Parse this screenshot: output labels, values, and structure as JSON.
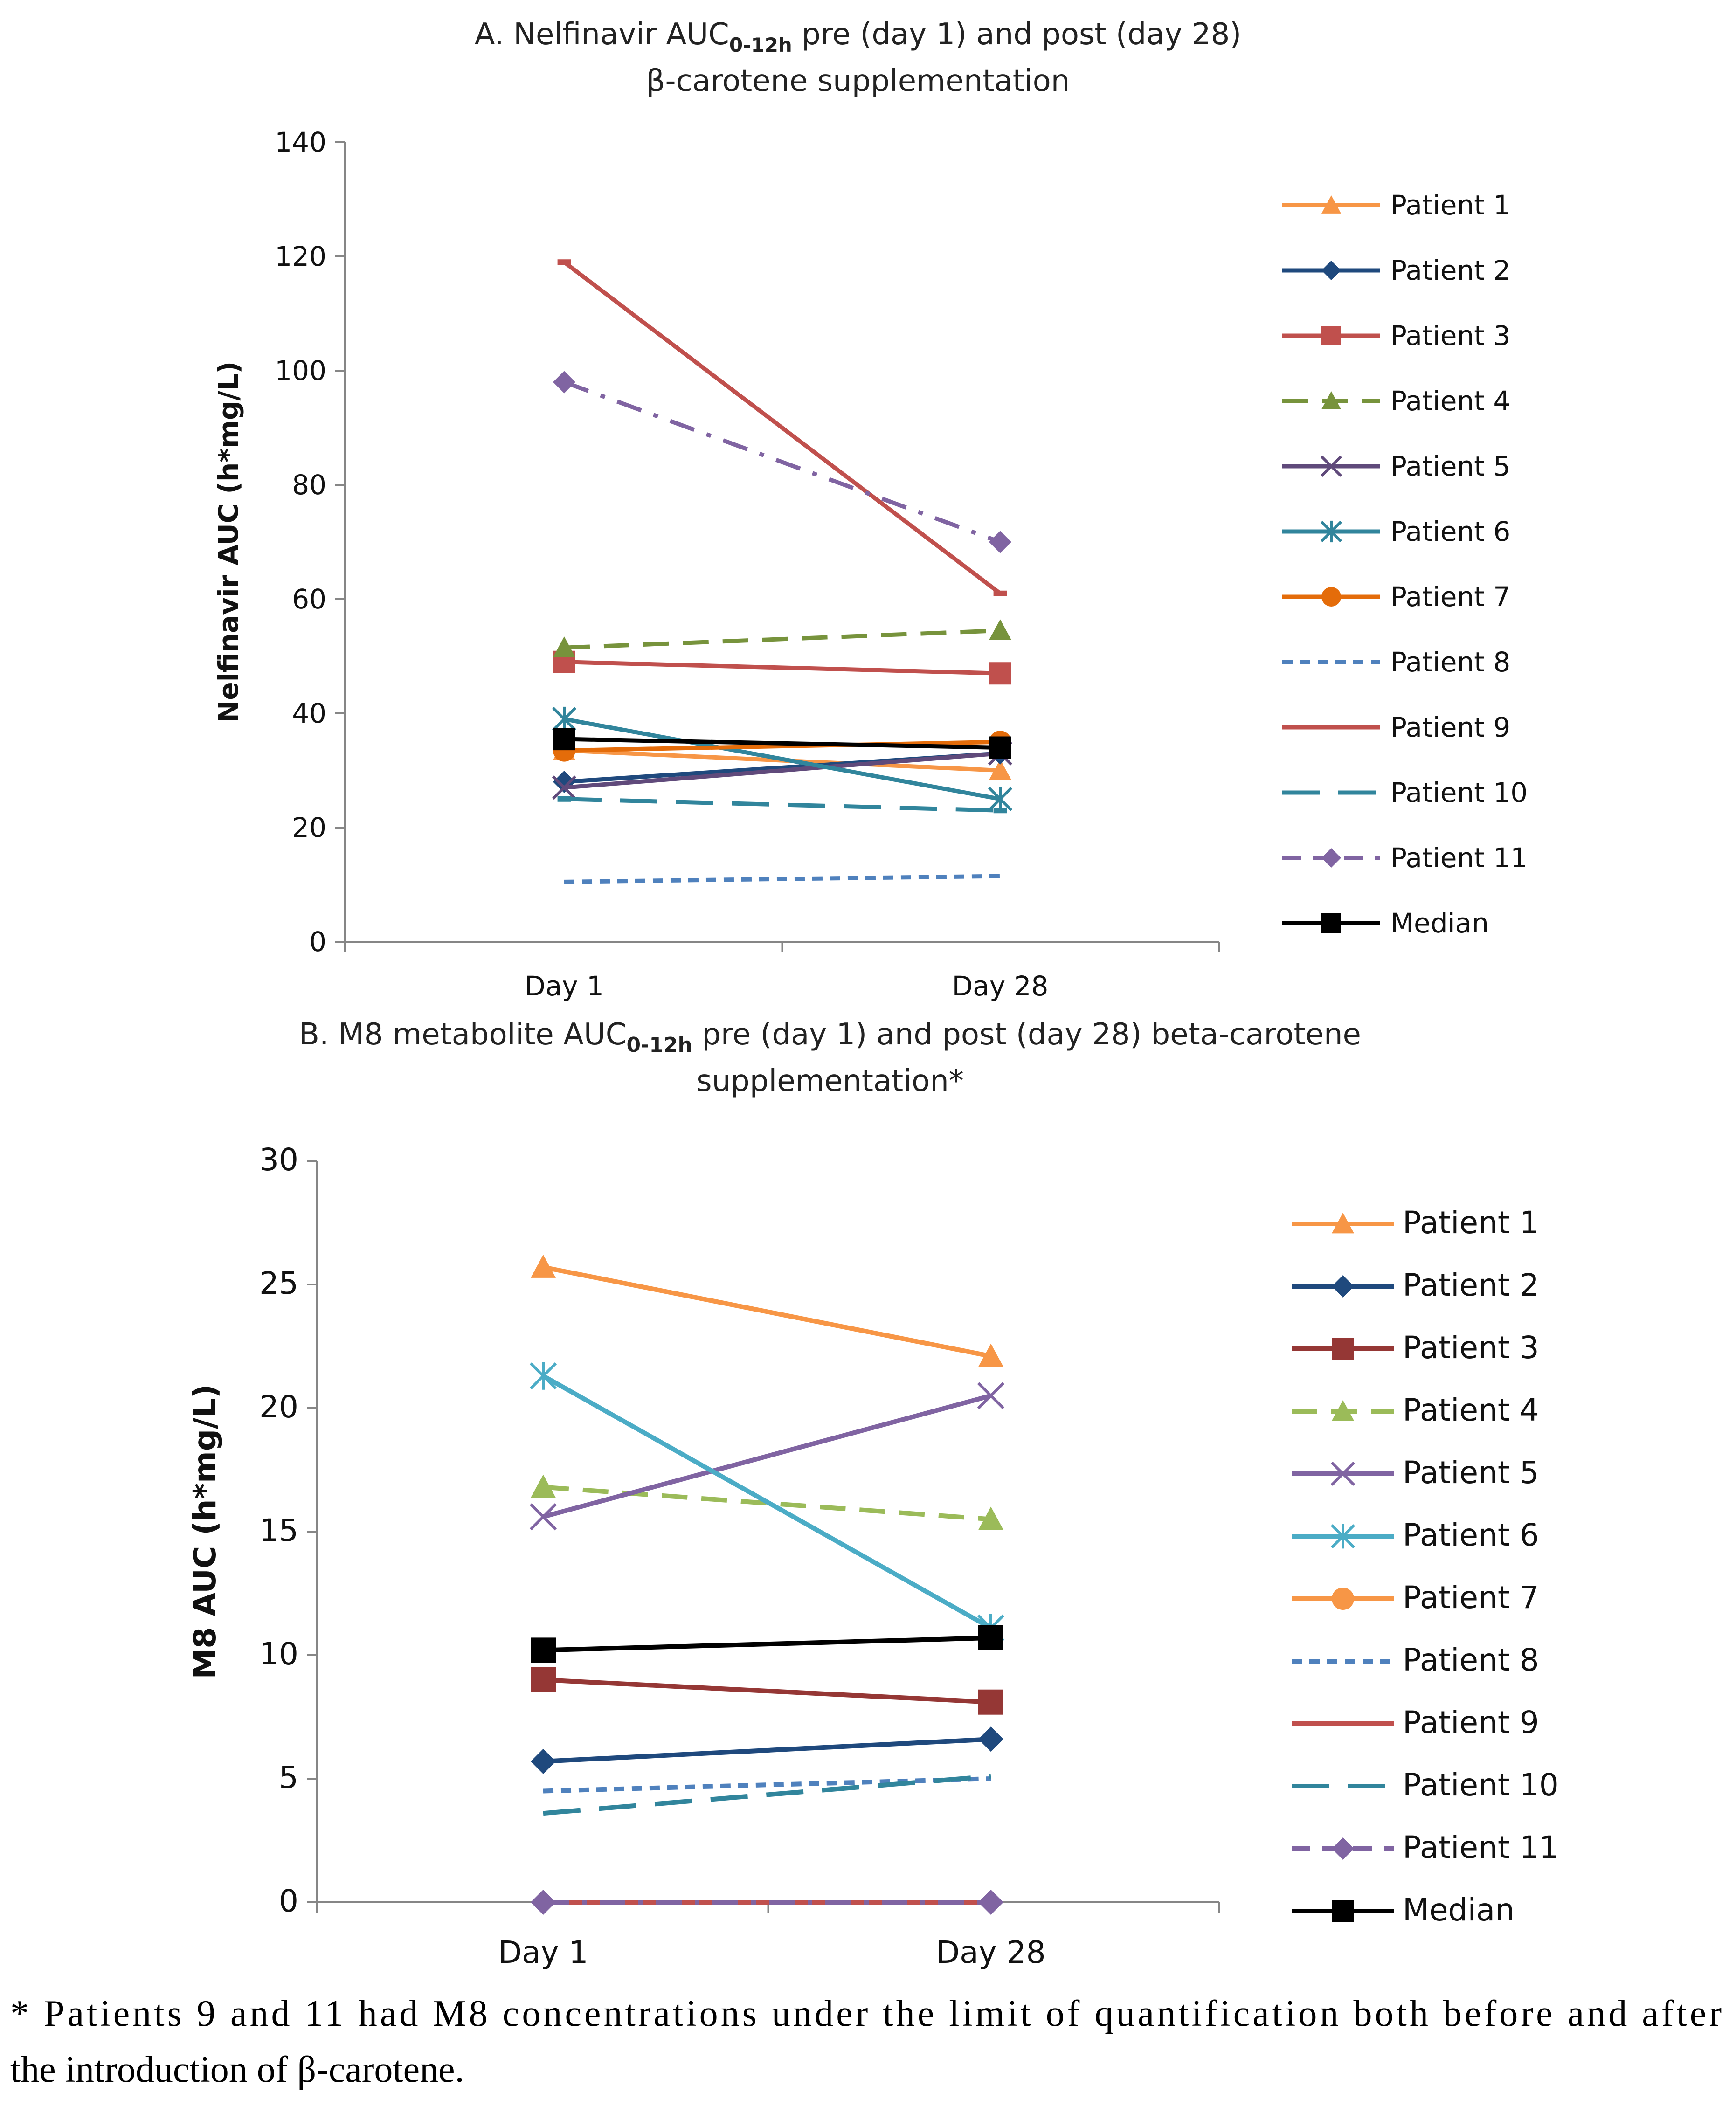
{
  "chart_data": [
    {
      "type": "line",
      "title_prefix": "A. Nelfinavir AUC",
      "title_subscript": "0-12h",
      "title_suffix": " pre (day 1) and post (day 28)",
      "title_line2": "β-carotene supplementation",
      "xlabel": "",
      "ylabel": "Nelfinavir AUC (h*mg/L)",
      "ylim": [
        0,
        140
      ],
      "yticks": [
        0,
        20,
        40,
        60,
        80,
        100,
        120,
        140
      ],
      "categories": [
        "Day 1",
        "Day 28"
      ],
      "grid": false,
      "legend_position": "right",
      "series": [
        {
          "name": "Patient 1",
          "values": [
            33.5,
            30
          ],
          "color": "#f79646",
          "dash": "solid",
          "marker": "triangle"
        },
        {
          "name": "Patient 2",
          "values": [
            28,
            33
          ],
          "color": "#1f497d",
          "dash": "solid",
          "marker": "diamond"
        },
        {
          "name": "Patient 3",
          "values": [
            49,
            47
          ],
          "color": "#c0504d",
          "dash": "solid",
          "marker": "square"
        },
        {
          "name": "Patient 4",
          "values": [
            51.5,
            54.5
          ],
          "color": "#77933c",
          "dash": "dash",
          "marker": "triangle"
        },
        {
          "name": "Patient 5",
          "values": [
            27,
            33
          ],
          "color": "#604a7b",
          "dash": "solid",
          "marker": "x"
        },
        {
          "name": "Patient 6",
          "values": [
            39,
            25
          ],
          "color": "#31859c",
          "dash": "solid",
          "marker": "star"
        },
        {
          "name": "Patient 7",
          "values": [
            33.5,
            35
          ],
          "color": "#e46c0a",
          "dash": "solid",
          "marker": "circle"
        },
        {
          "name": "Patient 8",
          "values": [
            10.5,
            11.5
          ],
          "color": "#4f81bd",
          "dash": "shortdash",
          "marker": "none"
        },
        {
          "name": "Patient 9",
          "values": [
            119,
            61
          ],
          "color": "#c0504d",
          "dash": "solid",
          "marker": "dash"
        },
        {
          "name": "Patient 10",
          "values": [
            25,
            23
          ],
          "color": "#31859c",
          "dash": "longdash",
          "marker": "dash"
        },
        {
          "name": "Patient 11",
          "values": [
            98,
            70
          ],
          "color": "#8064a2",
          "dash": "dashdot",
          "marker": "diamond"
        },
        {
          "name": "Median",
          "values": [
            35.5,
            34
          ],
          "color": "#000000",
          "dash": "solid",
          "marker": "square"
        }
      ]
    },
    {
      "type": "line",
      "title_prefix": "B. M8 metabolite AUC",
      "title_subscript": "0-12h",
      "title_suffix": " pre (day 1) and post (day 28) beta-carotene",
      "title_line2": "supplementation*",
      "xlabel": "",
      "ylabel": "M8 AUC (h*mg/L)",
      "ylim": [
        0,
        30
      ],
      "yticks": [
        0,
        5,
        10,
        15,
        20,
        25,
        30
      ],
      "categories": [
        "Day 1",
        "Day 28"
      ],
      "grid": false,
      "legend_position": "right",
      "series": [
        {
          "name": "Patient 1",
          "values": [
            25.7,
            22.1
          ],
          "color": "#f79646",
          "dash": "solid",
          "marker": "triangle"
        },
        {
          "name": "Patient 2",
          "values": [
            5.7,
            6.6
          ],
          "color": "#1f497d",
          "dash": "solid",
          "marker": "diamond"
        },
        {
          "name": "Patient 3",
          "values": [
            9,
            8.1
          ],
          "color": "#953735",
          "dash": "solid",
          "marker": "square"
        },
        {
          "name": "Patient 4",
          "values": [
            16.8,
            15.5
          ],
          "color": "#9bbb59",
          "dash": "dash",
          "marker": "triangle"
        },
        {
          "name": "Patient 5",
          "values": [
            15.6,
            20.5
          ],
          "color": "#8064a2",
          "dash": "solid",
          "marker": "x"
        },
        {
          "name": "Patient 6",
          "values": [
            21.3,
            11.1
          ],
          "color": "#4bacc6",
          "dash": "solid",
          "marker": "star"
        },
        {
          "name": "Patient 7",
          "values": [
            null,
            null
          ],
          "color": "#f79646",
          "dash": "solid",
          "marker": "circle"
        },
        {
          "name": "Patient 8",
          "values": [
            4.5,
            5
          ],
          "color": "#4f81bd",
          "dash": "shortdash",
          "marker": "none"
        },
        {
          "name": "Patient 9",
          "values": [
            0,
            0
          ],
          "color": "#c0504d",
          "dash": "solid",
          "marker": "none"
        },
        {
          "name": "Patient 10",
          "values": [
            3.6,
            5.1
          ],
          "color": "#31859c",
          "dash": "longdash",
          "marker": "none"
        },
        {
          "name": "Patient 11",
          "values": [
            0,
            0
          ],
          "color": "#8064a2",
          "dash": "dashdot",
          "marker": "diamond"
        },
        {
          "name": "Median",
          "values": [
            10.2,
            10.7
          ],
          "color": "#000000",
          "dash": "solid",
          "marker": "square"
        }
      ]
    }
  ],
  "footnote": {
    "line1": "* Patients 9 and 11 had M8 concentrations under the limit of quantification both before and after",
    "line2": "the introduction of β-carotene."
  }
}
